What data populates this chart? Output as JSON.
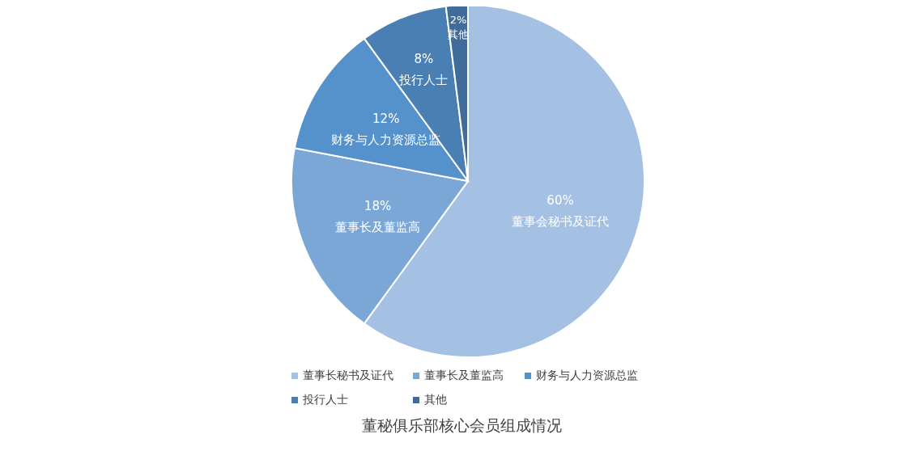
{
  "chart_data": {
    "type": "pie",
    "title": "董秘俱乐部核心会员组成情况",
    "categories": [
      "董事长秘书及证代",
      "董事长及董监高",
      "财务与人力资源总监",
      "投行人士",
      "其他"
    ],
    "values": [
      60,
      18,
      12,
      8,
      2
    ],
    "colors": [
      "#a4c0e3",
      "#7ba7d7",
      "#5591cb",
      "#4a7fb4",
      "#3f6c9a"
    ],
    "value_labels": [
      "60%\n董事会秘书及证代",
      "18%\n董事长及董监高",
      "12%\n财务与人力资源总监",
      "8%\n投行人士",
      "2%\n其他"
    ],
    "legend": "bottom"
  }
}
